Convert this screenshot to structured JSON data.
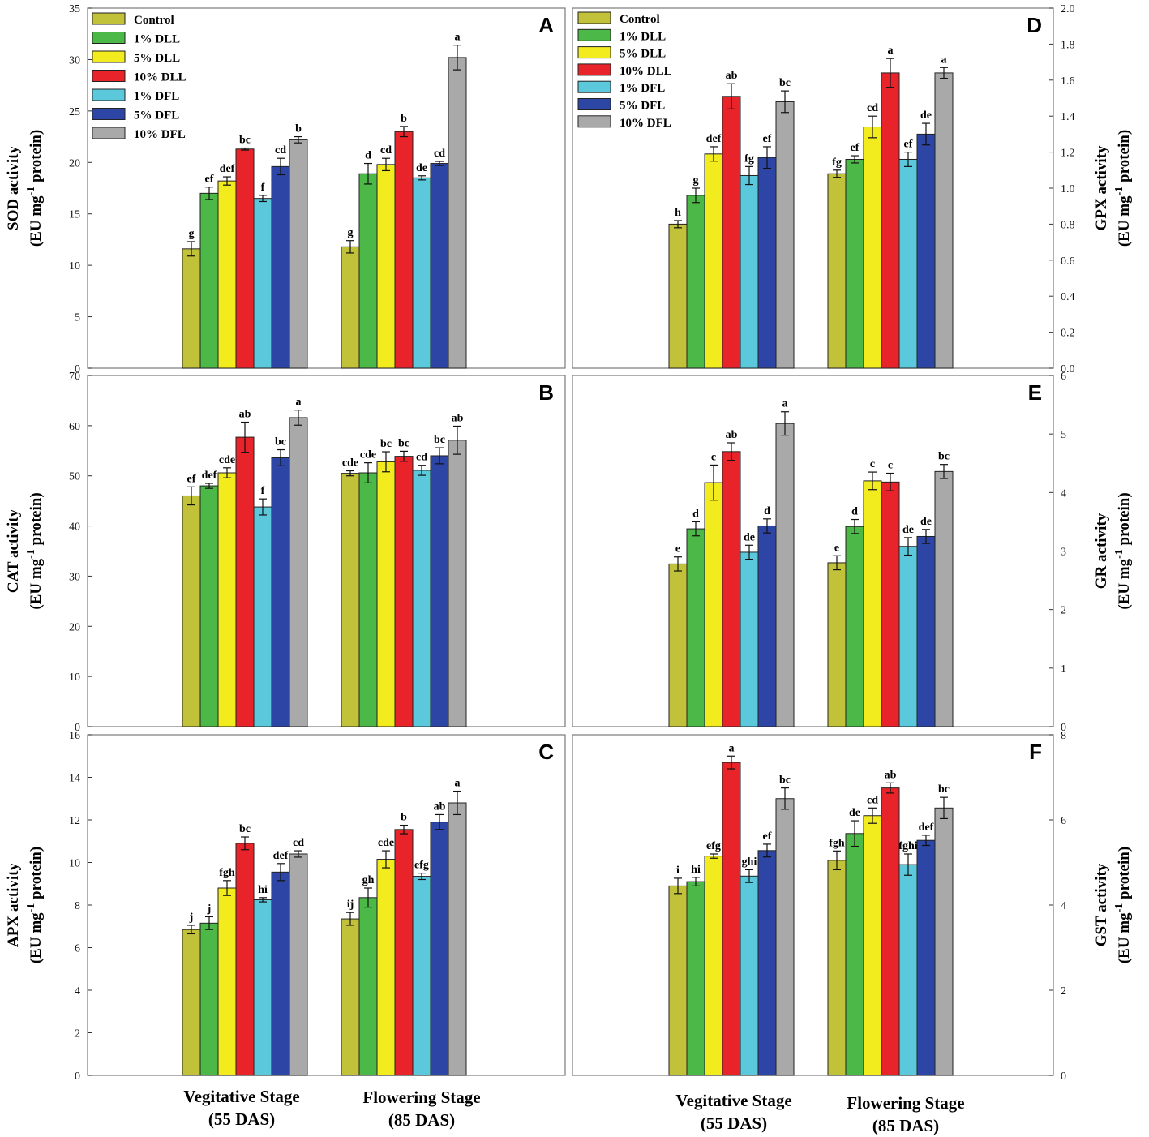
{
  "series_colors": [
    "#c2c23a",
    "#4cb848",
    "#f2ec1e",
    "#e8242a",
    "#5cc8dc",
    "#2d45a5",
    "#a9a9a9"
  ],
  "legend": [
    "Control",
    "1% DLL",
    "5% DLL",
    "10% DLL",
    "1% DFL",
    "5% DFL",
    "10% DFL"
  ],
  "x_categories": [
    {
      "line1": "Vegitative Stage",
      "line2": "(55 DAS)"
    },
    {
      "line1": "Flowering Stage",
      "line2": "(85 DAS)"
    }
  ],
  "chart_data": [
    {
      "panel": "A",
      "type": "bar",
      "ylabel_line1": "SOD activity",
      "ylabel_line2_pre": "(EU mg",
      "ylabel_sup": "-1",
      "ylabel_line2_post": " protein)",
      "categories": [
        "Vegitative Stage (55 DAS)",
        "Flowering Stage (85 DAS)"
      ],
      "ylim": [
        0,
        35
      ],
      "yticks": [
        0,
        5,
        10,
        15,
        20,
        25,
        30,
        35
      ],
      "ytick_labels": [
        "0",
        "5",
        "10",
        "15",
        "20",
        "25",
        "30",
        "35"
      ],
      "series": [
        {
          "name": "Control",
          "values": [
            11.6,
            11.8
          ],
          "errors": [
            0.7,
            0.6
          ],
          "letters": [
            "g",
            "g"
          ]
        },
        {
          "name": "1% DLL",
          "values": [
            17.0,
            18.9
          ],
          "errors": [
            0.6,
            1.0
          ],
          "letters": [
            "ef",
            "d"
          ]
        },
        {
          "name": "5% DLL",
          "values": [
            18.2,
            19.8
          ],
          "errors": [
            0.4,
            0.6
          ],
          "letters": [
            "def",
            "cd"
          ]
        },
        {
          "name": "10% DLL",
          "values": [
            21.3,
            23.0
          ],
          "errors": [
            0.1,
            0.5
          ],
          "letters": [
            "bc",
            "b"
          ]
        },
        {
          "name": "1% DFL",
          "values": [
            16.5,
            18.5
          ],
          "errors": [
            0.3,
            0.2
          ],
          "letters": [
            "f",
            "de"
          ]
        },
        {
          "name": "5% DFL",
          "values": [
            19.6,
            19.9
          ],
          "errors": [
            0.8,
            0.2
          ],
          "letters": [
            "cd",
            "cd"
          ]
        },
        {
          "name": "10% DFL",
          "values": [
            22.2,
            30.2
          ],
          "errors": [
            0.3,
            1.2
          ],
          "letters": [
            "b",
            "a"
          ]
        }
      ]
    },
    {
      "panel": "B",
      "type": "bar",
      "ylabel_line1": "CAT activity",
      "ylabel_line2_pre": "(EU mg",
      "ylabel_sup": "-1",
      "ylabel_line2_post": " protein)",
      "categories": [
        "Vegitative Stage (55 DAS)",
        "Flowering Stage (85 DAS)"
      ],
      "ylim": [
        0,
        70
      ],
      "yticks": [
        0,
        10,
        20,
        30,
        40,
        50,
        60,
        70
      ],
      "ytick_labels": [
        "0",
        "10",
        "20",
        "30",
        "40",
        "50",
        "60",
        "70"
      ],
      "series": [
        {
          "name": "Control",
          "values": [
            46.0,
            50.5
          ],
          "errors": [
            1.8,
            0.5
          ],
          "letters": [
            "ef",
            "cde"
          ]
        },
        {
          "name": "1% DLL",
          "values": [
            48.0,
            50.6
          ],
          "errors": [
            0.5,
            2.0
          ],
          "letters": [
            "def",
            "cde"
          ]
        },
        {
          "name": "5% DLL",
          "values": [
            50.6,
            52.8
          ],
          "errors": [
            1.0,
            2.0
          ],
          "letters": [
            "cde",
            "bc"
          ]
        },
        {
          "name": "10% DLL",
          "values": [
            57.7,
            53.9
          ],
          "errors": [
            3.0,
            1.0
          ],
          "letters": [
            "ab",
            "bc"
          ]
        },
        {
          "name": "1% DFL",
          "values": [
            43.8,
            51.1
          ],
          "errors": [
            1.6,
            1.0
          ],
          "letters": [
            "f",
            "cd"
          ]
        },
        {
          "name": "5% DFL",
          "values": [
            53.6,
            54.0
          ],
          "errors": [
            1.6,
            1.6
          ],
          "letters": [
            "bc",
            "bc"
          ]
        },
        {
          "name": "10% DFL",
          "values": [
            61.6,
            57.1
          ],
          "errors": [
            1.5,
            2.8
          ],
          "letters": [
            "a",
            "ab"
          ]
        }
      ]
    },
    {
      "panel": "C",
      "type": "bar",
      "ylabel_line1": "APX activity",
      "ylabel_line2_pre": "(EU mg",
      "ylabel_sup": "-1",
      "ylabel_line2_post": " protein)",
      "categories": [
        "Vegitative Stage (55 DAS)",
        "Flowering Stage (85 DAS)"
      ],
      "ylim": [
        0,
        16
      ],
      "yticks": [
        0,
        2,
        4,
        6,
        8,
        10,
        12,
        14,
        16
      ],
      "ytick_labels": [
        "0",
        "2",
        "4",
        "6",
        "8",
        "10",
        "12",
        "14",
        "16"
      ],
      "series": [
        {
          "name": "Control",
          "values": [
            6.85,
            7.35
          ],
          "errors": [
            0.2,
            0.3
          ],
          "letters": [
            "j",
            "ij"
          ]
        },
        {
          "name": "1% DLL",
          "values": [
            7.15,
            8.35
          ],
          "errors": [
            0.3,
            0.45
          ],
          "letters": [
            "j",
            "gh"
          ]
        },
        {
          "name": "5% DLL",
          "values": [
            8.8,
            10.15
          ],
          "errors": [
            0.35,
            0.4
          ],
          "letters": [
            "fgh",
            "cde"
          ]
        },
        {
          "name": "10% DLL",
          "values": [
            10.9,
            11.55
          ],
          "errors": [
            0.3,
            0.2
          ],
          "letters": [
            "bc",
            "b"
          ]
        },
        {
          "name": "1% DFL",
          "values": [
            8.25,
            9.35
          ],
          "errors": [
            0.1,
            0.15
          ],
          "letters": [
            "hi",
            "efg"
          ]
        },
        {
          "name": "5% DFL",
          "values": [
            9.55,
            11.9
          ],
          "errors": [
            0.4,
            0.35
          ],
          "letters": [
            "def",
            "ab"
          ]
        },
        {
          "name": "10% DFL",
          "values": [
            10.4,
            12.8
          ],
          "errors": [
            0.15,
            0.55
          ],
          "letters": [
            "cd",
            "a"
          ]
        }
      ]
    },
    {
      "panel": "D",
      "type": "bar",
      "ylabel_line1": "GPX activity",
      "ylabel_line2_pre": "(EU mg",
      "ylabel_sup": "-1",
      "ylabel_line2_post": " protein)",
      "categories": [
        "Vegitative Stage (55 DAS)",
        "Flowering Stage (85 DAS)"
      ],
      "ylim": [
        0,
        2.0
      ],
      "yticks": [
        0,
        0.2,
        0.4,
        0.6,
        0.8,
        1.0,
        1.2,
        1.4,
        1.6,
        1.8,
        2.0
      ],
      "ytick_labels": [
        "0.0",
        "0.2",
        "0.4",
        "0.6",
        "0.8",
        "1.0",
        "1.2",
        "1.4",
        "1.6",
        "1.8",
        "2.0"
      ],
      "series": [
        {
          "name": "Control",
          "values": [
            0.8,
            1.08
          ],
          "errors": [
            0.02,
            0.02
          ],
          "letters": [
            "h",
            "fg"
          ]
        },
        {
          "name": "1% DLL",
          "values": [
            0.96,
            1.16
          ],
          "errors": [
            0.04,
            0.02
          ],
          "letters": [
            "g",
            "ef"
          ]
        },
        {
          "name": "5% DLL",
          "values": [
            1.19,
            1.34
          ],
          "errors": [
            0.04,
            0.06
          ],
          "letters": [
            "def",
            "cd"
          ]
        },
        {
          "name": "10% DLL",
          "values": [
            1.51,
            1.64
          ],
          "errors": [
            0.07,
            0.08
          ],
          "letters": [
            "ab",
            "a"
          ]
        },
        {
          "name": "1% DFL",
          "values": [
            1.07,
            1.16
          ],
          "errors": [
            0.05,
            0.04
          ],
          "letters": [
            "fg",
            "ef"
          ]
        },
        {
          "name": "5% DFL",
          "values": [
            1.17,
            1.3
          ],
          "errors": [
            0.06,
            0.06
          ],
          "letters": [
            "ef",
            "de"
          ]
        },
        {
          "name": "10% DFL",
          "values": [
            1.48,
            1.64
          ],
          "errors": [
            0.06,
            0.03
          ],
          "letters": [
            "bc",
            "a"
          ]
        }
      ]
    },
    {
      "panel": "E",
      "type": "bar",
      "ylabel_line1": "GR activity",
      "ylabel_line2_pre": "(EU mg",
      "ylabel_sup": "-1",
      "ylabel_line2_post": " protein)",
      "categories": [
        "Vegitative Stage (55 DAS)",
        "Flowering Stage (85 DAS)"
      ],
      "ylim": [
        0,
        6
      ],
      "yticks": [
        0,
        1,
        2,
        3,
        4,
        5,
        6
      ],
      "ytick_labels": [
        "0",
        "1",
        "2",
        "3",
        "4",
        "5",
        "6"
      ],
      "series": [
        {
          "name": "Control",
          "values": [
            2.78,
            2.8
          ],
          "errors": [
            0.12,
            0.12
          ],
          "letters": [
            "e",
            "e"
          ]
        },
        {
          "name": "1% DLL",
          "values": [
            3.38,
            3.42
          ],
          "errors": [
            0.12,
            0.12
          ],
          "letters": [
            "d",
            "d"
          ]
        },
        {
          "name": "5% DLL",
          "values": [
            4.17,
            4.2
          ],
          "errors": [
            0.3,
            0.15
          ],
          "letters": [
            "c",
            "c"
          ]
        },
        {
          "name": "10% DLL",
          "values": [
            4.7,
            4.18
          ],
          "errors": [
            0.15,
            0.15
          ],
          "letters": [
            "ab",
            "c"
          ]
        },
        {
          "name": "1% DFL",
          "values": [
            2.98,
            3.08
          ],
          "errors": [
            0.12,
            0.15
          ],
          "letters": [
            "de",
            "de"
          ]
        },
        {
          "name": "5% DFL",
          "values": [
            3.43,
            3.25
          ],
          "errors": [
            0.12,
            0.12
          ],
          "letters": [
            "d",
            "de"
          ]
        },
        {
          "name": "10% DFL",
          "values": [
            5.18,
            4.36
          ],
          "errors": [
            0.2,
            0.12
          ],
          "letters": [
            "a",
            "bc"
          ]
        }
      ]
    },
    {
      "panel": "F",
      "type": "bar",
      "ylabel_line1": "GST activity",
      "ylabel_line2_pre": "(EU mg",
      "ylabel_sup": "-1",
      "ylabel_line2_post": " protein)",
      "categories": [
        "Vegitative Stage (55 DAS)",
        "Flowering Stage (85 DAS)"
      ],
      "ylim": [
        0,
        8
      ],
      "yticks": [
        0,
        2,
        4,
        6,
        8
      ],
      "ytick_labels": [
        "0",
        "2",
        "4",
        "6",
        "8"
      ],
      "series": [
        {
          "name": "Control",
          "values": [
            4.45,
            5.05
          ],
          "errors": [
            0.18,
            0.22
          ],
          "letters": [
            "i",
            "fgh"
          ]
        },
        {
          "name": "1% DLL",
          "values": [
            4.55,
            5.68
          ],
          "errors": [
            0.1,
            0.3
          ],
          "letters": [
            "hi",
            "de"
          ]
        },
        {
          "name": "5% DLL",
          "values": [
            5.15,
            6.1
          ],
          "errors": [
            0.05,
            0.18
          ],
          "letters": [
            "efg",
            "cd"
          ]
        },
        {
          "name": "10% DLL",
          "values": [
            7.35,
            6.75
          ],
          "errors": [
            0.15,
            0.12
          ],
          "letters": [
            "a",
            "ab"
          ]
        },
        {
          "name": "1% DFL",
          "values": [
            4.68,
            4.95
          ],
          "errors": [
            0.15,
            0.25
          ],
          "letters": [
            "ghi",
            "fghi"
          ]
        },
        {
          "name": "5% DFL",
          "values": [
            5.28,
            5.52
          ],
          "errors": [
            0.15,
            0.12
          ],
          "letters": [
            "ef",
            "def"
          ]
        },
        {
          "name": "10% DFL",
          "values": [
            6.5,
            6.28
          ],
          "errors": [
            0.25,
            0.25
          ],
          "letters": [
            "bc",
            "bc"
          ]
        }
      ]
    }
  ]
}
